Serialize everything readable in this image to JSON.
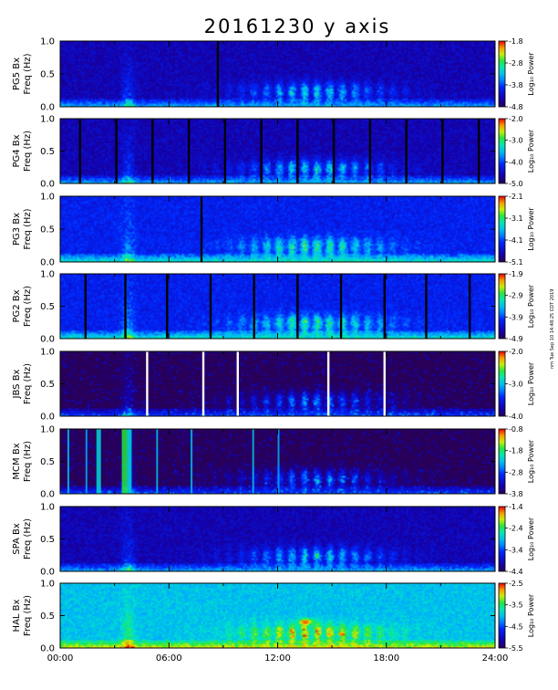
{
  "title": "20161230 y axis",
  "stamp": "nm Tue Sep 10 14:48:25 CDT 2019",
  "x_ticks": [
    "00:00",
    "06:00",
    "12:00",
    "18:00",
    "24:00"
  ],
  "y_ticks": [
    "0.0",
    "0.5",
    "1.0"
  ],
  "colorbar_label": "Log₁₀ Power",
  "chart_data": [
    {
      "type": "heatmap",
      "station": "PG5 Bx",
      "ylabel": "Freq (Hz)",
      "ylim": [
        0,
        1.0
      ],
      "xlim": [
        0,
        24
      ],
      "clim": [
        -4.8,
        -1.8
      ],
      "cbar_ticks": [
        "-1.8",
        "-2.8",
        "-3.8",
        "-4.8"
      ],
      "background": "dark-blue",
      "gaps_h": [
        8.7
      ],
      "gap_color": "#000000"
    },
    {
      "type": "heatmap",
      "station": "PG4 Bx",
      "ylabel": "Freq (Hz)",
      "ylim": [
        0,
        1.0
      ],
      "xlim": [
        0,
        24
      ],
      "clim": [
        -5.0,
        -2.0
      ],
      "cbar_ticks": [
        "-2.0",
        "-3.0",
        "-4.0",
        "-5.0"
      ],
      "background": "dark-blue",
      "gaps_h": [
        1.1,
        3.1,
        5.1,
        7.1,
        9.1,
        11.1,
        13.1,
        15.1,
        17.1,
        19.1,
        21.1,
        23.1
      ],
      "gap_color": "#000000"
    },
    {
      "type": "heatmap",
      "station": "PG3 Bx",
      "ylabel": "Freq (Hz)",
      "ylim": [
        0,
        1.0
      ],
      "xlim": [
        0,
        24
      ],
      "clim": [
        -5.1,
        -2.1
      ],
      "cbar_ticks": [
        "-2.1",
        "-3.1",
        "-4.1",
        "-5.1"
      ],
      "background": "blue",
      "gaps_h": [
        7.8
      ],
      "gap_color": "#000000"
    },
    {
      "type": "heatmap",
      "station": "PG2 Bx",
      "ylabel": "Freq (Hz)",
      "ylim": [
        0,
        1.0
      ],
      "xlim": [
        0,
        24
      ],
      "clim": [
        -4.9,
        -1.9
      ],
      "cbar_ticks": [
        "-1.9",
        "-2.9",
        "-3.9",
        "-4.9"
      ],
      "background": "blue",
      "gaps_h": [
        1.4,
        3.6,
        5.9,
        8.3,
        10.7,
        13.1,
        15.5,
        17.9,
        20.2,
        22.6
      ],
      "gap_color": "#000000"
    },
    {
      "type": "heatmap",
      "station": "JBS Bx",
      "ylabel": "Freq (Hz)",
      "ylim": [
        0,
        1.0
      ],
      "xlim": [
        0,
        24
      ],
      "clim": [
        -4.0,
        -2.0
      ],
      "cbar_ticks": [
        "-2.0",
        "-3.0",
        "-4.0"
      ],
      "background": "black",
      "gaps_h": [
        4.8,
        7.9,
        9.8,
        14.8,
        17.9
      ],
      "gap_color": "#ffffff"
    },
    {
      "type": "heatmap",
      "station": "MCM Bx",
      "ylabel": "Freq (Hz)",
      "ylim": [
        0,
        1.0
      ],
      "xlim": [
        0,
        24
      ],
      "clim": [
        -3.8,
        -0.8
      ],
      "cbar_ticks": [
        "-0.8",
        "-1.8",
        "-2.8",
        "-3.8"
      ],
      "background": "black",
      "gaps_h": [],
      "gap_color": "#000000"
    },
    {
      "type": "heatmap",
      "station": "SPA Bx",
      "ylabel": "Freq (Hz)",
      "ylim": [
        0,
        1.0
      ],
      "xlim": [
        0,
        24
      ],
      "clim": [
        -4.4,
        -1.4
      ],
      "cbar_ticks": [
        "-1.4",
        "-2.4",
        "-3.4",
        "-4.4"
      ],
      "background": "dark-blue",
      "gaps_h": [],
      "gap_color": "#000000"
    },
    {
      "type": "heatmap",
      "station": "HAL Bx",
      "ylabel": "Freq (Hz)",
      "ylim": [
        0,
        1.0
      ],
      "xlim": [
        0,
        24
      ],
      "clim": [
        -5.5,
        -2.5
      ],
      "cbar_ticks": [
        "-2.5",
        "-3.5",
        "-4.5",
        "-5.5"
      ],
      "background": "cyan-green",
      "gaps_h": [],
      "gap_color": "#000000"
    }
  ]
}
